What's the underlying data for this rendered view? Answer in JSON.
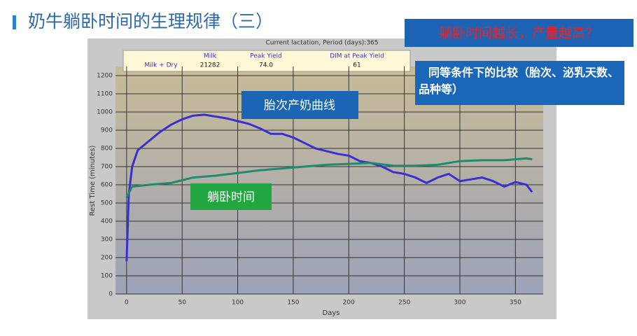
{
  "slide": {
    "title": "奶牛躺卧时间的生理规律（三）",
    "question": "躺卧时间越长，产量越高？",
    "note": "同等条件下的比较（胎次、泌乳天数、品种等）"
  },
  "chart_data": {
    "type": "line",
    "title": "Current lactation, Period (days):365",
    "x_label": "Days",
    "y_label": "Rest Time (minutes)",
    "info": {
      "row_label": "Milk + Dry",
      "headers": [
        "Milk",
        "Peak Yield",
        "DIM at Peak Yield"
      ],
      "values": [
        "21282",
        "74.0",
        "61"
      ]
    },
    "xlim": [
      -10,
      375
    ],
    "xticks": [
      0,
      50,
      100,
      150,
      200,
      250,
      300,
      350
    ],
    "ylim": [
      0,
      1250
    ],
    "yticks": [
      0,
      100,
      200,
      300,
      400,
      500,
      600,
      700,
      800,
      900,
      1000,
      1100,
      1200
    ],
    "grid": true,
    "series": [
      {
        "name": "胎次产奶曲线",
        "color": "#3a2fd0",
        "x": [
          0,
          2,
          5,
          10,
          20,
          30,
          40,
          50,
          60,
          70,
          80,
          90,
          100,
          110,
          120,
          130,
          140,
          150,
          160,
          170,
          180,
          190,
          200,
          210,
          220,
          230,
          240,
          250,
          260,
          270,
          280,
          290,
          300,
          310,
          320,
          330,
          340,
          350,
          360,
          365
        ],
        "values": [
          180,
          550,
          700,
          790,
          840,
          890,
          930,
          960,
          980,
          985,
          975,
          965,
          950,
          935,
          910,
          880,
          880,
          860,
          830,
          800,
          785,
          770,
          760,
          730,
          720,
          700,
          670,
          660,
          640,
          610,
          640,
          660,
          620,
          630,
          640,
          620,
          590,
          615,
          600,
          560
        ]
      },
      {
        "name": "躺卧时间",
        "color": "#1f8a70",
        "x": [
          0,
          5,
          20,
          40,
          60,
          80,
          100,
          120,
          140,
          160,
          180,
          200,
          220,
          240,
          260,
          280,
          290,
          300,
          320,
          340,
          360,
          365
        ],
        "values": [
          530,
          590,
          600,
          610,
          640,
          650,
          665,
          680,
          690,
          700,
          710,
          715,
          720,
          705,
          705,
          710,
          720,
          730,
          735,
          735,
          745,
          740
        ]
      }
    ]
  }
}
